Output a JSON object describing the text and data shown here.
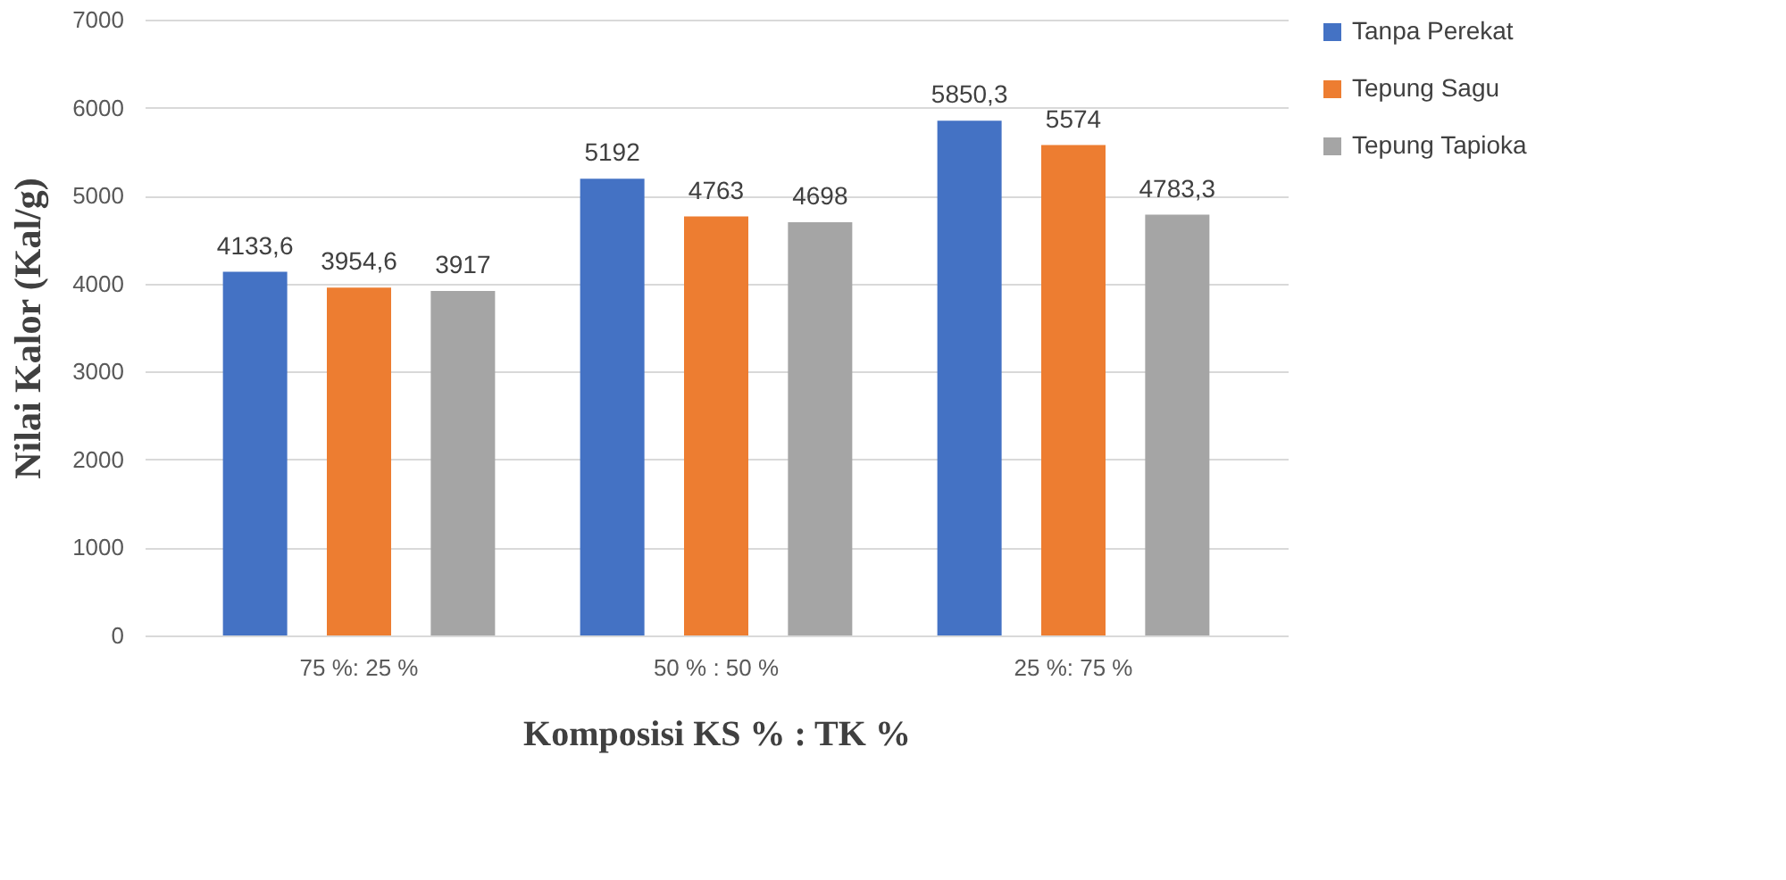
{
  "chart_data": {
    "type": "bar",
    "xlabel": "Komposisi KS % : TK %",
    "ylabel": "Nilai Kalor  (Kal/g)",
    "categories": [
      "75 %:  25 %",
      "50 % : 50 %",
      "25 %: 75 %"
    ],
    "series": [
      {
        "name": "Tanpa Perekat",
        "color": "#4472c4",
        "values": [
          4133.6,
          5192,
          5850.3
        ],
        "value_labels": [
          "4133,6",
          "5192",
          "5850,3"
        ]
      },
      {
        "name": "Tepung Sagu",
        "color": "#ed7d31",
        "values": [
          3954.6,
          4763,
          5574
        ],
        "value_labels": [
          "3954,6",
          "4763",
          "5574"
        ]
      },
      {
        "name": "Tepung Tapioka",
        "color": "#a5a5a5",
        "values": [
          3917,
          4698,
          4783.3
        ],
        "value_labels": [
          "3917",
          "4698",
          "4783,3"
        ]
      }
    ],
    "ylim": [
      0,
      7000
    ],
    "yticks": [
      0,
      1000,
      2000,
      3000,
      4000,
      5000,
      6000,
      7000
    ],
    "grid": "y",
    "legend": "right"
  }
}
